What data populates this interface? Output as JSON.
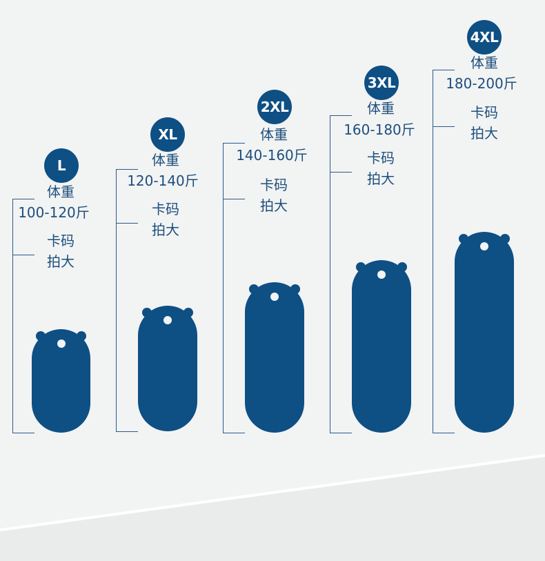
{
  "sizes": [
    {
      "size": "L",
      "weight_label": "体重",
      "weight_range": "100-120斤",
      "note_line1": "卡码",
      "note_line2": "拍大"
    },
    {
      "size": "XL",
      "weight_label": "体重",
      "weight_range": "120-140斤",
      "note_line1": "卡码",
      "note_line2": "拍大"
    },
    {
      "size": "2XL",
      "weight_label": "体重",
      "weight_range": "140-160斤",
      "note_line1": "卡码",
      "note_line2": "拍大"
    },
    {
      "size": "3XL",
      "weight_label": "体重",
      "weight_range": "160-180斤",
      "note_line1": "卡码",
      "note_line2": "拍大"
    },
    {
      "size": "4XL",
      "weight_label": "体重",
      "weight_range": "180-200斤",
      "note_line1": "卡码",
      "note_line2": "拍大"
    }
  ],
  "colors": {
    "accent": "#0e4f84",
    "text": "#1d4f7c",
    "background": "#f2f3f3",
    "line": "#2a5a86"
  }
}
